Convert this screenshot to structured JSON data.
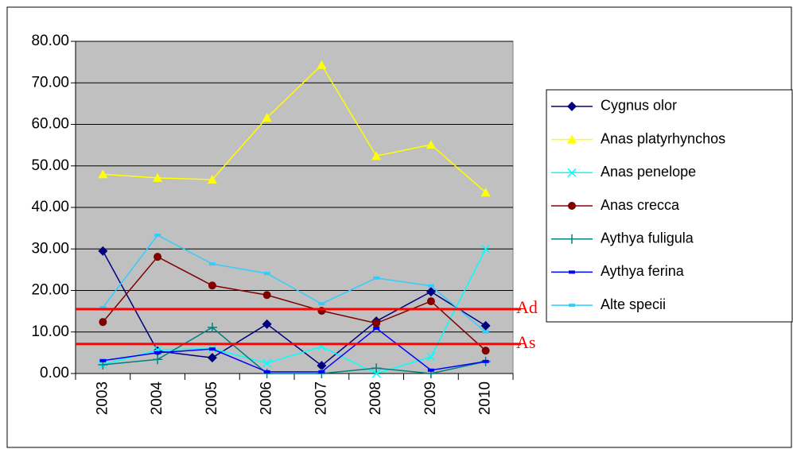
{
  "chart_data": {
    "type": "line",
    "categories": [
      "2003",
      "2004",
      "2005",
      "2006",
      "2007",
      "2008",
      "2009",
      "2010"
    ],
    "series": [
      {
        "name": "Cygnus olor",
        "color": "#000080",
        "marker": "diamond",
        "values": [
          29.5,
          5.4,
          3.8,
          11.9,
          1.9,
          12.6,
          19.7,
          11.5
        ]
      },
      {
        "name": "Anas platyrhynchos",
        "color": "#ffff00",
        "marker": "triangle",
        "values": [
          48.0,
          47.1,
          46.7,
          61.6,
          74.3,
          52.4,
          55.1,
          43.6
        ]
      },
      {
        "name": "Anas penelope",
        "color": "#00ffff",
        "marker": "x",
        "values": [
          2.1,
          5.7,
          6.0,
          2.5,
          6.5,
          0.0,
          4.0,
          30.0
        ]
      },
      {
        "name": "Anas crecca",
        "color": "#800000",
        "marker": "circle",
        "values": [
          12.4,
          28.1,
          21.2,
          18.9,
          15.1,
          12.1,
          17.4,
          5.5
        ]
      },
      {
        "name": "Aythya fuligula",
        "color": "#008080",
        "marker": "plus",
        "values": [
          2.1,
          3.4,
          11.1,
          0.0,
          0.0,
          1.3,
          0.0,
          2.9
        ]
      },
      {
        "name": "Aythya ferina",
        "color": "#0000ff",
        "marker": "dash",
        "values": [
          3.1,
          5.0,
          5.9,
          0.4,
          0.4,
          10.9,
          0.8,
          2.9
        ]
      },
      {
        "name": "Alte specii",
        "color": "#33ccff",
        "marker": "dash",
        "values": [
          15.9,
          33.3,
          26.4,
          24.1,
          16.8,
          23.0,
          21.1,
          10.0
        ]
      }
    ],
    "reference_lines": [
      {
        "label": "Ad",
        "value": 15.5,
        "color": "#ff0000"
      },
      {
        "label": "As",
        "value": 7.1,
        "color": "#ff0000"
      }
    ],
    "ylim": [
      0,
      80
    ],
    "yticks": [
      {
        "value": 0,
        "label": "0.00"
      },
      {
        "value": 10,
        "label": "10.00"
      },
      {
        "value": 20,
        "label": "20.00"
      },
      {
        "value": 30,
        "label": "30.00"
      },
      {
        "value": 40,
        "label": "40.00"
      },
      {
        "value": 50,
        "label": "50.00"
      },
      {
        "value": 60,
        "label": "60.00"
      },
      {
        "value": 70,
        "label": "70.00"
      },
      {
        "value": 80,
        "label": "80.00"
      }
    ],
    "grid": true,
    "plot_background": "#c0c0c0",
    "legend": "right"
  }
}
